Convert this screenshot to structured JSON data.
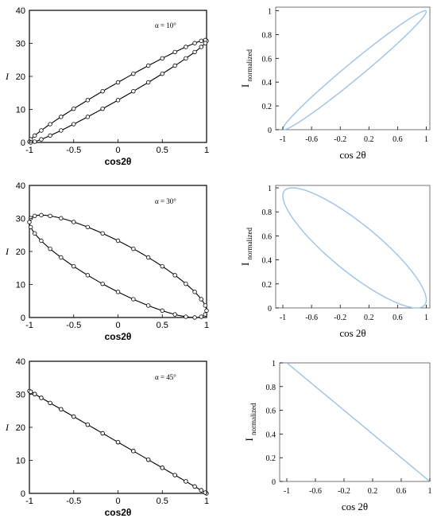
{
  "chart_data": [
    {
      "id": "left-1",
      "type": "line",
      "side": "left",
      "annotation": "α = 10°",
      "xlabel": "cos2θ",
      "ylabel": "I",
      "xlim": [
        -1,
        1
      ],
      "ylim": [
        0,
        40
      ],
      "xticks": [
        -1,
        -0.5,
        0,
        0.5,
        1
      ],
      "xtick_labels": [
        "-1",
        "-0.5",
        "0",
        "0.5",
        "1"
      ],
      "yticks": [
        0,
        10,
        20,
        30,
        40
      ],
      "ytick_labels": [
        "0",
        "10",
        "20",
        "30",
        "40"
      ],
      "curve": {
        "shape": "ellipse",
        "phase_deg": 10,
        "mid": 15.5,
        "amp": 15.5
      },
      "markers": "open-circles"
    },
    {
      "id": "right-1",
      "type": "line",
      "side": "right",
      "xlabel": "cos 2θ",
      "ylabel": "I",
      "ylabel_sub": "normalized",
      "xlim": [
        -1.1,
        1.05
      ],
      "ylim": [
        0,
        1.03
      ],
      "xticks": [
        -1,
        -0.6,
        -0.2,
        0.2,
        0.6,
        1
      ],
      "xtick_labels": [
        "-1",
        "-0.6",
        "-0.2",
        "0.2",
        "0.6",
        "1"
      ],
      "yticks": [
        0,
        0.2,
        0.4,
        0.6,
        0.8,
        1
      ],
      "ytick_labels": [
        "0",
        "0.2",
        "0.4",
        "0.6",
        "0.8",
        "1"
      ],
      "curve": {
        "shape": "ellipse",
        "phase_deg": 10,
        "mid": 0.5,
        "amp": 0.5
      },
      "color": "#9cc3e6"
    },
    {
      "id": "left-2",
      "type": "line",
      "side": "left",
      "annotation": "α = 30°",
      "xlabel": "cos2θ",
      "ylabel": "I",
      "xlim": [
        -1,
        1
      ],
      "ylim": [
        0,
        40
      ],
      "xticks": [
        -1,
        -0.5,
        0,
        0.5,
        1
      ],
      "xtick_labels": [
        "-1",
        "-0.5",
        "0",
        "0.5",
        "1"
      ],
      "yticks": [
        0,
        10,
        20,
        30,
        40
      ],
      "ytick_labels": [
        "0",
        "10",
        "20",
        "30",
        "40"
      ],
      "curve": {
        "shape": "ellipse",
        "phase_deg": 150,
        "mid": 15.5,
        "amp": 15.5
      },
      "markers": "open-circles"
    },
    {
      "id": "right-2",
      "type": "line",
      "side": "right",
      "xlabel": "cos 2θ",
      "ylabel": "I",
      "ylabel_sub": "normalized",
      "xlim": [
        -1.1,
        1.05
      ],
      "ylim": [
        0,
        1.02
      ],
      "xticks": [
        -1,
        -0.6,
        -0.2,
        0.2,
        0.6,
        1
      ],
      "xtick_labels": [
        "-1",
        "-0.6",
        "-0.2",
        "0.2",
        "0.6",
        "1"
      ],
      "yticks": [
        0,
        0.2,
        0.4,
        0.6,
        0.8,
        1
      ],
      "ytick_labels": [
        "0",
        "0.2",
        "0.4",
        "0.6",
        "0.8",
        "1"
      ],
      "curve": {
        "shape": "ellipse",
        "phase_deg": 150,
        "mid": 0.5,
        "amp": 0.5
      },
      "color": "#9cc3e6"
    },
    {
      "id": "left-3",
      "type": "line",
      "side": "left",
      "annotation": "α = 45°",
      "xlabel": "cos2θ",
      "ylabel": "I",
      "xlim": [
        -1,
        1
      ],
      "ylim": [
        0,
        40
      ],
      "xticks": [
        -1,
        -0.5,
        0,
        0.5,
        1
      ],
      "xtick_labels": [
        "-1",
        "-0.5",
        "0",
        "0.5",
        "1"
      ],
      "yticks": [
        0,
        10,
        20,
        30,
        40
      ],
      "ytick_labels": [
        "0",
        "10",
        "20",
        "30",
        "40"
      ],
      "curve": {
        "shape": "ellipse",
        "phase_deg": 180,
        "mid": 15.5,
        "amp": 15.5
      },
      "markers": "open-circles"
    },
    {
      "id": "right-3",
      "type": "line",
      "side": "right",
      "xlabel": "cos 2θ",
      "ylabel": "I",
      "ylabel_sub": "normalized",
      "xlim": [
        -1.1,
        1.0
      ],
      "ylim": [
        0,
        1.0
      ],
      "xticks": [
        -1,
        -0.6,
        -0.2,
        0.2,
        0.6,
        1
      ],
      "xtick_labels": [
        "-1",
        "-0.6",
        "-0.2",
        "0.2",
        "0.6",
        "1"
      ],
      "yticks": [
        0,
        0.2,
        0.4,
        0.6,
        0.8,
        1
      ],
      "ytick_labels": [
        "0",
        "0.2",
        "0.4",
        "0.6",
        "0.8",
        "1"
      ],
      "curve": {
        "shape": "ellipse",
        "phase_deg": 180,
        "mid": 0.5,
        "amp": 0.5
      },
      "color": "#9cc3e6"
    }
  ]
}
